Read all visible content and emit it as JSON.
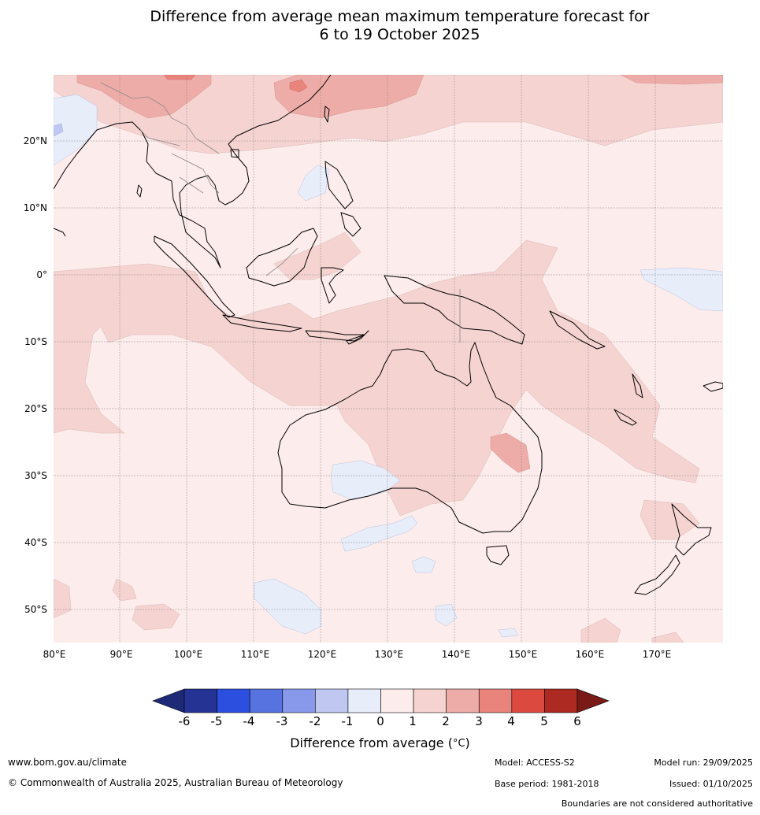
{
  "title": {
    "line1": "Difference from average mean maximum temperature forecast for",
    "line2": "6 to 19 October 2025"
  },
  "axes": {
    "lat_labels": [
      "20°N",
      "10°N",
      "0°",
      "10°S",
      "20°S",
      "30°S",
      "40°S",
      "50°S"
    ],
    "lon_labels": [
      "80°E",
      "90°E",
      "100°E",
      "110°E",
      "120°E",
      "130°E",
      "140°E",
      "150°E",
      "160°E",
      "170°E"
    ]
  },
  "colorbar": {
    "ticks": [
      "-6",
      "-5",
      "-4",
      "-3",
      "-2",
      "-1",
      "0",
      "1",
      "2",
      "3",
      "4",
      "5",
      "6"
    ],
    "colors": [
      "#253494",
      "#2d4fe0",
      "#5673e0",
      "#8898ea",
      "#c0c8f2",
      "#e8edfa",
      "#fceceb",
      "#f5d3d1",
      "#eeaca8",
      "#e8847c",
      "#dc4a3f",
      "#ac2a22"
    ],
    "under_color": "#1e2a78",
    "over_color": "#7a1a16",
    "label": "Difference from average (°C)",
    "label_prefix": "Difference from average (",
    "label_unit": "°C",
    "label_suffix": ")"
  },
  "footer": {
    "website": "www.bom.gov.au/climate",
    "copyright": "© Commonwealth of Australia 2025, Australian Bureau of Meteorology",
    "model": "Model: ACCESS-S2",
    "base_period": "Base period: 1981-2018",
    "model_run": "Model run: 29/09/2025",
    "issued": "Issued: 01/10/2025",
    "disclaimer": "Boundaries are not considered authoritative"
  }
}
